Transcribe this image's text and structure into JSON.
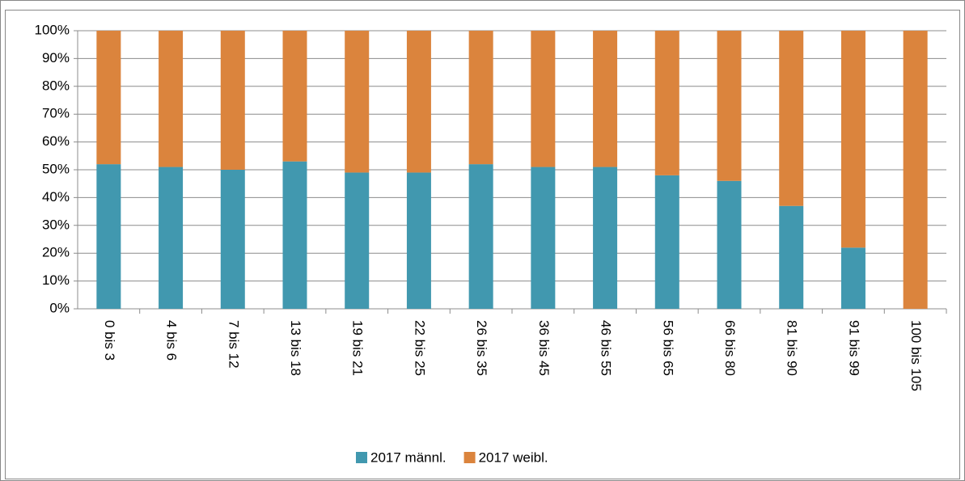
{
  "chart_data": {
    "type": "stacked_bar",
    "categories": [
      "0 bis 3",
      "4 bis 6",
      "7 bis 12",
      "13 bis 18",
      "19 bis 21",
      "22 bis 25",
      "26 bis 35",
      "36 bis 45",
      "46 bis 55",
      "56 bis 65",
      "66 bis 80",
      "81 bis 90",
      "91 bis 99",
      "100 bis 105"
    ],
    "series": [
      {
        "name": "2017 männl.",
        "color": "#4198af",
        "values": [
          52,
          51,
          50,
          53,
          49,
          49,
          52,
          51,
          51,
          48,
          46,
          37,
          22,
          0
        ]
      },
      {
        "name": "2017 weibl.",
        "color": "#db843d",
        "values": [
          48,
          49,
          50,
          47,
          51,
          51,
          48,
          49,
          49,
          52,
          54,
          63,
          78,
          100
        ]
      }
    ],
    "ylim": [
      0,
      100
    ],
    "yticks": [
      {
        "value": 0,
        "label": "0%"
      },
      {
        "value": 10,
        "label": "10%"
      },
      {
        "value": 20,
        "label": "20%"
      },
      {
        "value": 30,
        "label": "30%"
      },
      {
        "value": 40,
        "label": "40%"
      },
      {
        "value": 50,
        "label": "50%"
      },
      {
        "value": 60,
        "label": "60%"
      },
      {
        "value": 70,
        "label": "70%"
      },
      {
        "value": 80,
        "label": "80%"
      },
      {
        "value": 90,
        "label": "90%"
      },
      {
        "value": 100,
        "label": "100%"
      }
    ],
    "grid": true,
    "legend": "bottom"
  }
}
